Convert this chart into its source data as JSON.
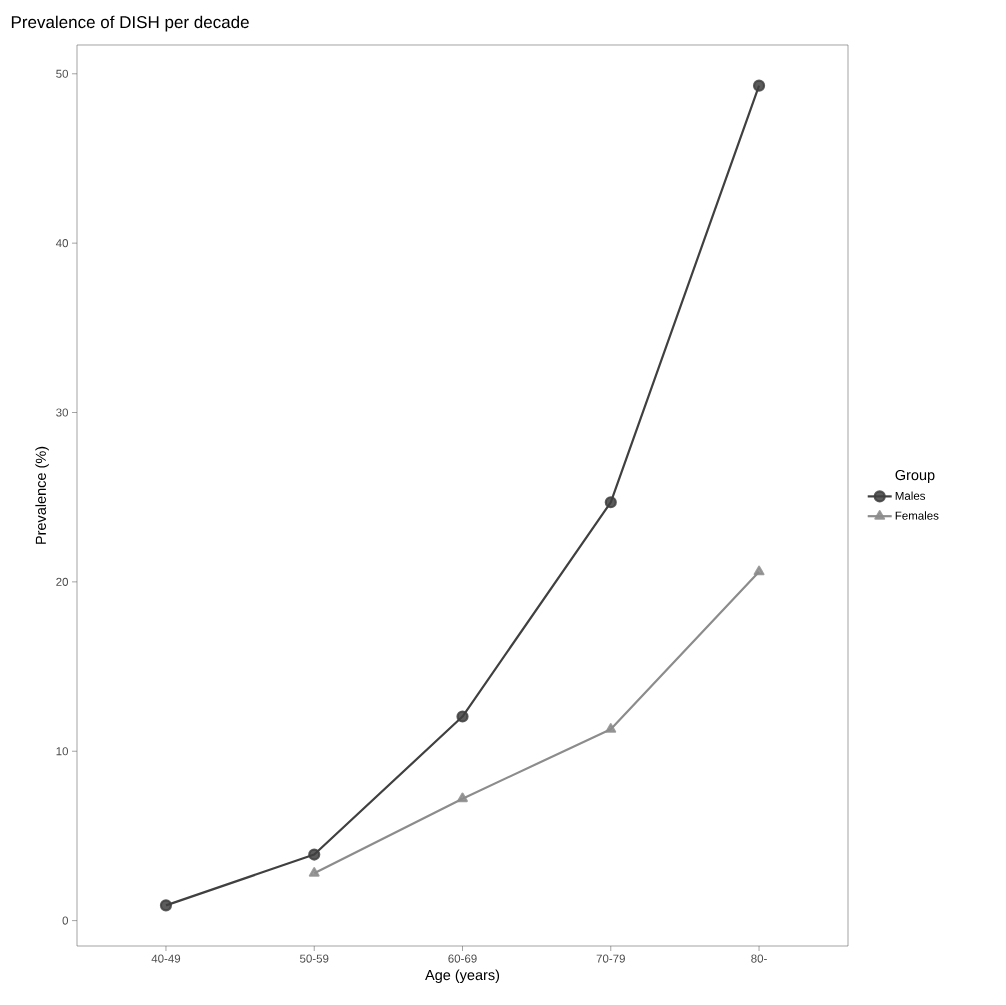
{
  "chart_data": {
    "type": "line",
    "title": "Prevalence of DISH per decade",
    "xlabel": "Age (years)",
    "ylabel": "Prevalence (%)",
    "legend_title": "Group",
    "categories": [
      "40-49",
      "50-59",
      "60-69",
      "70-79",
      "80-"
    ],
    "series": [
      {
        "name": "Males",
        "color": "#404040",
        "marker": "circle",
        "values": [
          0.9,
          3.9,
          12.05,
          24.7,
          49.3
        ]
      },
      {
        "name": "Females",
        "color": "#8c8c8c",
        "marker": "triangle",
        "values": [
          null,
          2.8,
          7.2,
          11.3,
          20.6
        ]
      }
    ],
    "ylim": [
      -1.5,
      51.7
    ],
    "yticks": [
      0,
      10,
      20,
      30,
      40,
      50
    ],
    "grid": false,
    "legend": "right",
    "line_style": "solid"
  }
}
